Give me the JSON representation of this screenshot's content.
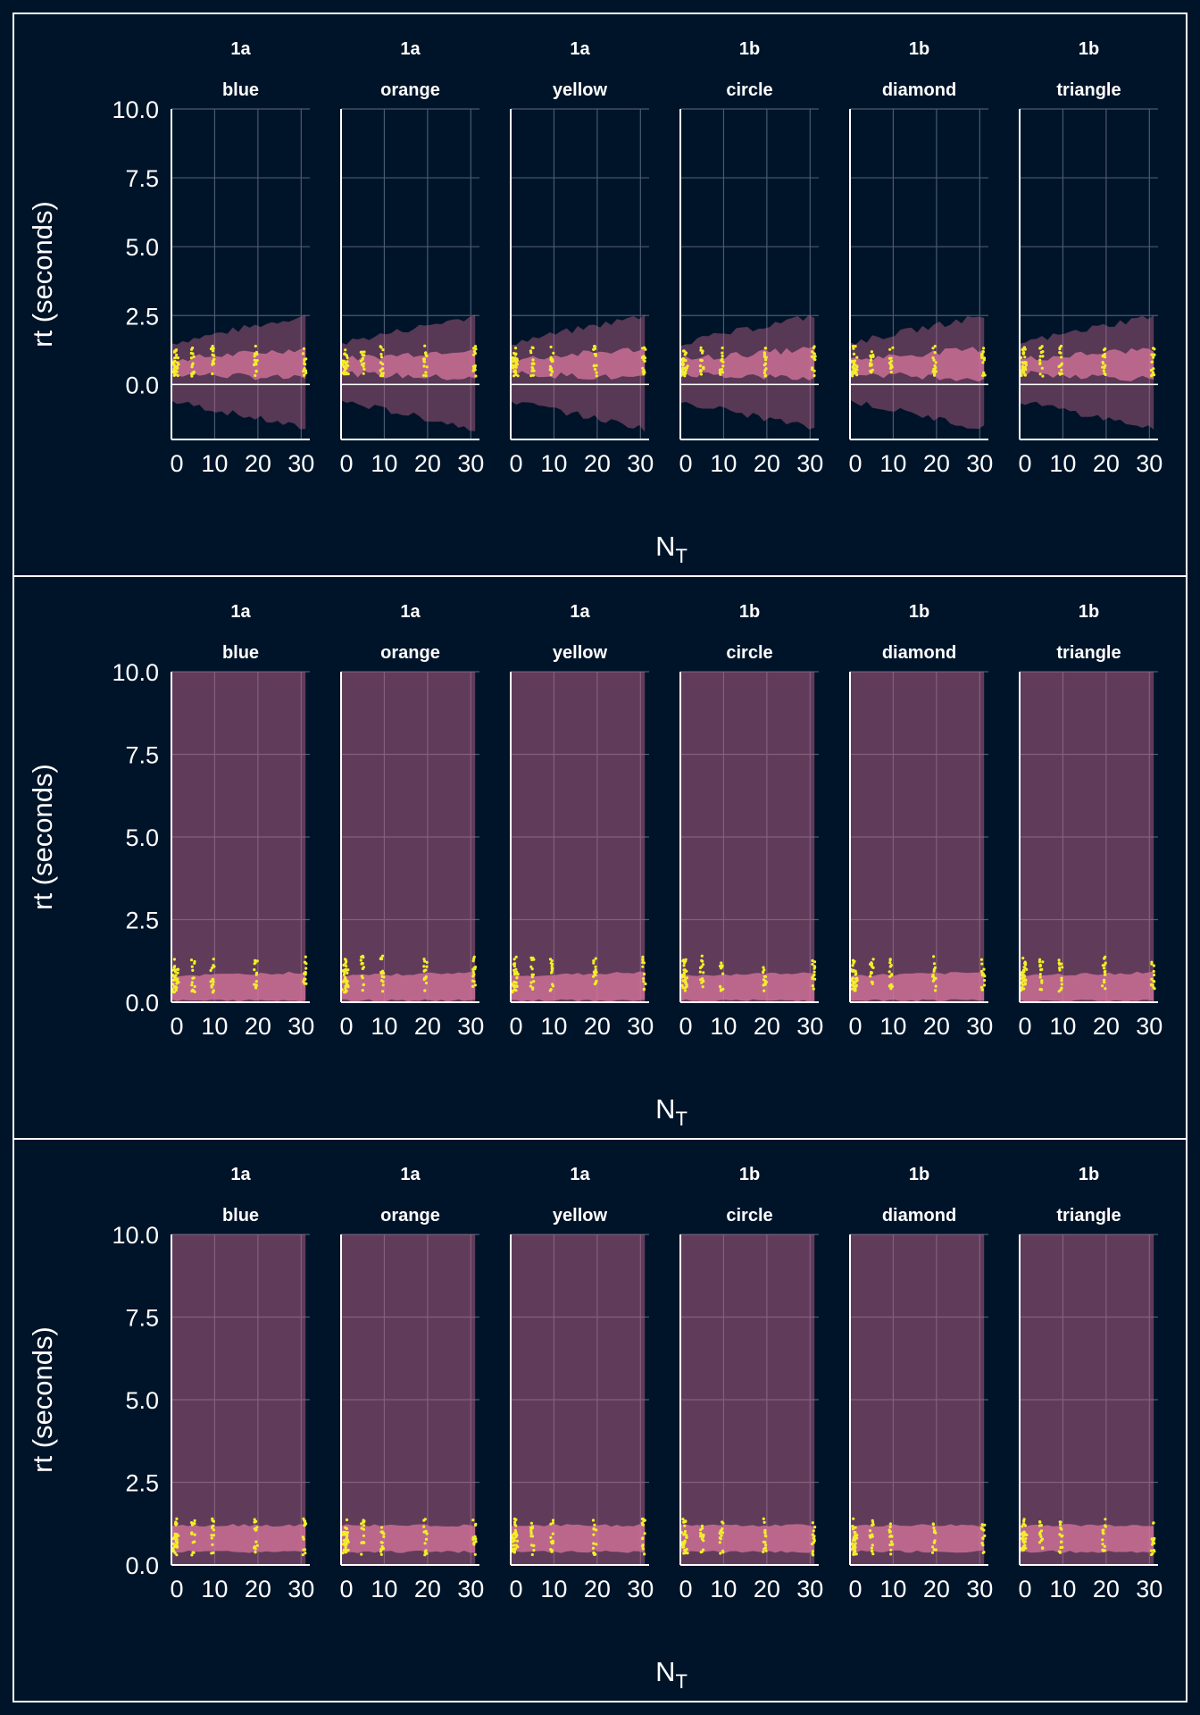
{
  "colors": {
    "background": "#001429",
    "frame": "#ffffff",
    "grid": "#4a5a70",
    "band_outer": "#c0648c",
    "band_inner": "#d9759e",
    "points": "#f2ee2a",
    "zero_line": "#ffffff"
  },
  "chart_data": [
    {
      "type": "area",
      "panels": [
        {
          "experiment": "1a",
          "condition": "blue"
        },
        {
          "experiment": "1a",
          "condition": "orange"
        },
        {
          "experiment": "1a",
          "condition": "yellow"
        },
        {
          "experiment": "1b",
          "condition": "circle"
        },
        {
          "experiment": "1b",
          "condition": "diamond"
        },
        {
          "experiment": "1b",
          "condition": "triangle"
        }
      ],
      "xlabel": "N",
      "xlabel_sub": "T",
      "ylabel": "rt (seconds)",
      "xlim": [
        0,
        32
      ],
      "ylim": [
        -2,
        10
      ],
      "x_ticks": [
        0,
        10,
        20,
        30
      ],
      "x_tick_labels": [
        "0",
        "10",
        "20",
        "30"
      ],
      "y_ticks": [
        0,
        2.5,
        5,
        7.5,
        10
      ],
      "y_tick_labels": [
        "0.0",
        "2.5",
        "5.0",
        "7.5",
        "10.0"
      ],
      "zero_line": true,
      "band_x": [
        0,
        31
      ],
      "outer_band": {
        "lower_start": -0.6,
        "lower_end": -1.6,
        "upper_start": 1.5,
        "upper_end": 2.5
      },
      "inner_band": {
        "lower_start": 0.4,
        "lower_end": 0.2,
        "upper_start": 0.9,
        "upper_end": 1.3
      }
    },
    {
      "type": "area",
      "panels": [
        {
          "experiment": "1a",
          "condition": "blue"
        },
        {
          "experiment": "1a",
          "condition": "orange"
        },
        {
          "experiment": "1a",
          "condition": "yellow"
        },
        {
          "experiment": "1b",
          "condition": "circle"
        },
        {
          "experiment": "1b",
          "condition": "diamond"
        },
        {
          "experiment": "1b",
          "condition": "triangle"
        }
      ],
      "xlabel": "N",
      "xlabel_sub": "T",
      "ylabel": "rt (seconds)",
      "xlim": [
        0,
        32
      ],
      "ylim": [
        0,
        10
      ],
      "x_ticks": [
        0,
        10,
        20,
        30
      ],
      "x_tick_labels": [
        "0",
        "10",
        "20",
        "30"
      ],
      "y_ticks": [
        0,
        2.5,
        5,
        7.5,
        10
      ],
      "y_tick_labels": [
        "0.0",
        "2.5",
        "5.0",
        "7.5",
        "10.0"
      ],
      "zero_line": false,
      "band_x": [
        0,
        31
      ],
      "outer_band": {
        "lower_start": 0,
        "lower_end": 0,
        "upper_start": 10,
        "upper_end": 10
      },
      "inner_band": {
        "lower_start": 0.05,
        "lower_end": 0.05,
        "upper_start": 0.8,
        "upper_end": 0.9
      }
    },
    {
      "type": "area",
      "panels": [
        {
          "experiment": "1a",
          "condition": "blue"
        },
        {
          "experiment": "1a",
          "condition": "orange"
        },
        {
          "experiment": "1a",
          "condition": "yellow"
        },
        {
          "experiment": "1b",
          "condition": "circle"
        },
        {
          "experiment": "1b",
          "condition": "diamond"
        },
        {
          "experiment": "1b",
          "condition": "triangle"
        }
      ],
      "xlabel": "N",
      "xlabel_sub": "T",
      "ylabel": "rt (seconds)",
      "xlim": [
        0,
        32
      ],
      "ylim": [
        0,
        10
      ],
      "x_ticks": [
        0,
        10,
        20,
        30
      ],
      "x_tick_labels": [
        "0",
        "10",
        "20",
        "30"
      ],
      "y_ticks": [
        0,
        2.5,
        5,
        7.5,
        10
      ],
      "y_tick_labels": [
        "0.0",
        "2.5",
        "5.0",
        "7.5",
        "10.0"
      ],
      "zero_line": false,
      "band_x": [
        0,
        31
      ],
      "outer_band": {
        "lower_start": 0,
        "lower_end": 0,
        "upper_start": 10,
        "upper_end": 10
      },
      "inner_band": {
        "lower_start": 0.4,
        "lower_end": 0.4,
        "upper_start": 1.2,
        "upper_end": 1.2
      }
    }
  ]
}
